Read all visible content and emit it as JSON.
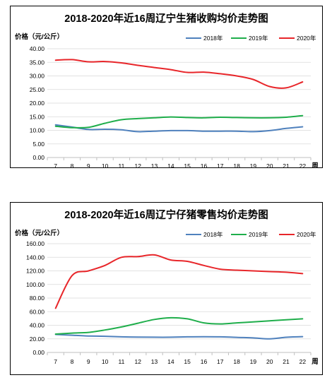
{
  "chart_data": [
    {
      "type": "line",
      "title": "2018-2020年近16周辽宁生猪收购均价走势图",
      "ylabel": "价格（元/公斤）",
      "xlabel": "周",
      "x": [
        7,
        8,
        9,
        10,
        11,
        12,
        13,
        14,
        15,
        16,
        17,
        18,
        19,
        20,
        21,
        22
      ],
      "xtick_labels": [
        "7",
        "8",
        "9",
        "10",
        "11",
        "12",
        "13",
        "14",
        "15",
        "16",
        "17",
        "18",
        "19",
        "20",
        "21",
        "22"
      ],
      "ylim": [
        0,
        40
      ],
      "ytick_labels": [
        "0.00",
        "5.00",
        "10.00",
        "15.00",
        "20.00",
        "25.00",
        "30.00",
        "35.00",
        "40.00"
      ],
      "legend_position": "top-right",
      "series": [
        {
          "name": "2018年",
          "color": "#4f81bd",
          "values": [
            12.0,
            11.2,
            10.3,
            10.4,
            10.2,
            9.5,
            9.7,
            9.9,
            9.9,
            9.7,
            9.7,
            9.7,
            9.5,
            9.9,
            10.7,
            11.3
          ]
        },
        {
          "name": "2019年",
          "color": "#1fae4b",
          "values": [
            11.5,
            11.0,
            11.1,
            12.6,
            13.9,
            14.3,
            14.6,
            14.9,
            14.7,
            14.6,
            14.8,
            14.7,
            14.6,
            14.6,
            14.8,
            15.4
          ]
        },
        {
          "name": "2020年",
          "color": "#e8262a",
          "values": [
            35.8,
            36.0,
            35.2,
            35.3,
            34.8,
            33.9,
            33.1,
            32.3,
            31.3,
            31.4,
            30.8,
            30.0,
            28.7,
            26.1,
            25.6,
            27.8
          ]
        }
      ]
    },
    {
      "type": "line",
      "title": "2018-2020年近16周辽宁仔猪零售均价走势图",
      "ylabel": "价格（元/公斤）",
      "xlabel": "周",
      "x": [
        7,
        8,
        9,
        10,
        11,
        12,
        13,
        14,
        15,
        16,
        17,
        18,
        19,
        20,
        21,
        22
      ],
      "xtick_labels": [
        "7",
        "8",
        "9",
        "10",
        "11",
        "12",
        "13",
        "14",
        "15",
        "16",
        "17",
        "18",
        "19",
        "20",
        "21",
        "22"
      ],
      "ylim": [
        0,
        160
      ],
      "ytick_labels": [
        "0.00",
        "20.00",
        "40.00",
        "60.00",
        "80.00",
        "100.00",
        "120.00",
        "140.00",
        "160.00"
      ],
      "legend_position": "top-right",
      "series": [
        {
          "name": "2018年",
          "color": "#4f81bd",
          "values": [
            26.5,
            25.3,
            24.2,
            23.8,
            23.0,
            22.5,
            22.4,
            22.4,
            23.0,
            23.2,
            23.0,
            22.2,
            21.4,
            20.0,
            22.3,
            23.3
          ]
        },
        {
          "name": "2019年",
          "color": "#1fae4b",
          "values": [
            27.0,
            28.5,
            29.5,
            33.0,
            37.5,
            43.0,
            48.5,
            51.0,
            49.5,
            43.5,
            42.0,
            43.5,
            45.0,
            46.5,
            48.0,
            49.5
          ]
        },
        {
          "name": "2020年",
          "color": "#e8262a",
          "values": [
            65.0,
            113.0,
            120.0,
            128.0,
            140.0,
            141.0,
            143.5,
            136.0,
            134.0,
            128.0,
            122.5,
            121.0,
            120.0,
            119.0,
            118.0,
            116.0
          ]
        }
      ]
    }
  ]
}
